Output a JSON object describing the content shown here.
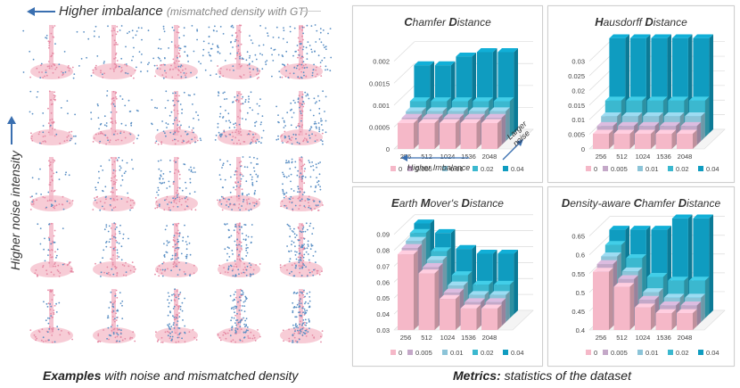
{
  "left": {
    "title": "Higher imbalance",
    "subtitle": "(mismatched density with GT)",
    "y_label": "Higher noise intensity",
    "caption_bold": "Examples",
    "caption_rest": " with noise and mismatched density"
  },
  "right": {
    "caption_bold": "Metrics:",
    "caption_rest": " statistics of the dataset"
  },
  "annotations": {
    "larger_noise": "Larger noise",
    "higher_imbalance": "Higher Imbalance"
  },
  "colors": {
    "0": "#f5b8c8",
    "0.005": "#c4a8c8",
    "0.01": "#8cc4d8",
    "0.02": "#3bb8cf",
    "0.04": "#0f9cc0",
    "arrow": "#3a6fb0"
  },
  "icons": {
    "left_arrow": "arrow-left-icon",
    "up_arrow": "arrow-up-icon"
  },
  "chart_data": [
    {
      "type": "bar",
      "title_parts": [
        [
          "C",
          "hamfer "
        ],
        [
          "D",
          "istance"
        ]
      ],
      "categories": [
        "256",
        "512",
        "1024",
        "1536",
        "2048"
      ],
      "yticks": [
        "0",
        "0.0005",
        "0.001",
        "0.0015",
        "0.002"
      ],
      "ylim": [
        0,
        0.0024
      ],
      "legend": "bottom",
      "series": [
        {
          "name": "0",
          "values": [
            0.00059,
            0.00059,
            0.00059,
            0.00059,
            0.00059
          ]
        },
        {
          "name": "0.005",
          "values": [
            0.00062,
            0.00062,
            0.00062,
            0.00062,
            0.00062
          ]
        },
        {
          "name": "0.01",
          "values": [
            0.00068,
            0.00068,
            0.00068,
            0.00068,
            0.00068
          ]
        },
        {
          "name": "0.02",
          "values": [
            0.00082,
            0.00082,
            0.00082,
            0.00082,
            0.00082
          ]
        },
        {
          "name": "0.04",
          "values": [
            0.00155,
            0.00155,
            0.00175,
            0.00185,
            0.00185
          ]
        }
      ]
    },
    {
      "type": "bar",
      "title_parts": [
        [
          "H",
          "ausdorff "
        ],
        [
          "D",
          "istance"
        ]
      ],
      "categories": [
        "256",
        "512",
        "1024",
        "1536",
        "2048"
      ],
      "yticks": [
        "0",
        "0.005",
        "0.01",
        "0.015",
        "0.02",
        "0.025",
        "0.03"
      ],
      "ylim": [
        0,
        0.036
      ],
      "legend": "bottom",
      "series": [
        {
          "name": "0",
          "values": [
            0.0052,
            0.0052,
            0.0052,
            0.0052,
            0.0052
          ]
        },
        {
          "name": "0.005",
          "values": [
            0.0065,
            0.0065,
            0.0065,
            0.0065,
            0.0065
          ]
        },
        {
          "name": "0.01",
          "values": [
            0.0085,
            0.0085,
            0.0085,
            0.0085,
            0.0085
          ]
        },
        {
          "name": "0.02",
          "values": [
            0.0125,
            0.0125,
            0.0125,
            0.0125,
            0.0125
          ]
        },
        {
          "name": "0.04",
          "values": [
            0.0325,
            0.0325,
            0.0325,
            0.0325,
            0.0325
          ]
        }
      ]
    },
    {
      "type": "bar",
      "title_parts": [
        [
          "E",
          "arth "
        ],
        [
          "M",
          "over's "
        ],
        [
          "D",
          "istance"
        ]
      ],
      "categories": [
        "256",
        "512",
        "1024",
        "1536",
        "2048"
      ],
      "yticks": [
        "0.03",
        "0.04",
        "0.05",
        "0.06",
        "0.07",
        "0.08",
        "0.09"
      ],
      "ylim": [
        0.03,
        0.096
      ],
      "legend": "bottom",
      "series": [
        {
          "name": "0",
          "values": [
            0.0775,
            0.0655,
            0.0495,
            0.0435,
            0.0435
          ]
        },
        {
          "name": "0.005",
          "values": [
            0.079,
            0.067,
            0.051,
            0.045,
            0.045
          ]
        },
        {
          "name": "0.01",
          "values": [
            0.081,
            0.069,
            0.053,
            0.047,
            0.047
          ]
        },
        {
          "name": "0.02",
          "values": [
            0.0835,
            0.072,
            0.057,
            0.051,
            0.051
          ]
        },
        {
          "name": "0.04",
          "values": [
            0.087,
            0.081,
            0.071,
            0.068,
            0.068
          ]
        }
      ]
    },
    {
      "type": "bar",
      "title_parts": [
        [
          "D",
          "ensity-aware "
        ],
        [
          "C",
          "hamfer "
        ],
        [
          "D",
          "istance"
        ]
      ],
      "categories": [
        "256",
        "512",
        "1024",
        "1536",
        "2048"
      ],
      "yticks": [
        "0.4",
        "0.45",
        "0.5",
        "0.55",
        "0.6",
        "0.65"
      ],
      "ylim": [
        0.4,
        0.68
      ],
      "legend": "bottom",
      "series": [
        {
          "name": "0",
          "values": [
            0.555,
            0.515,
            0.46,
            0.445,
            0.445
          ]
        },
        {
          "name": "0.005",
          "values": [
            0.565,
            0.525,
            0.47,
            0.455,
            0.455
          ]
        },
        {
          "name": "0.01",
          "values": [
            0.575,
            0.535,
            0.48,
            0.465,
            0.465
          ]
        },
        {
          "name": "0.02",
          "values": [
            0.595,
            0.56,
            0.51,
            0.5,
            0.5
          ]
        },
        {
          "name": "0.04",
          "values": [
            0.625,
            0.625,
            0.625,
            0.655,
            0.655
          ]
        }
      ]
    }
  ]
}
